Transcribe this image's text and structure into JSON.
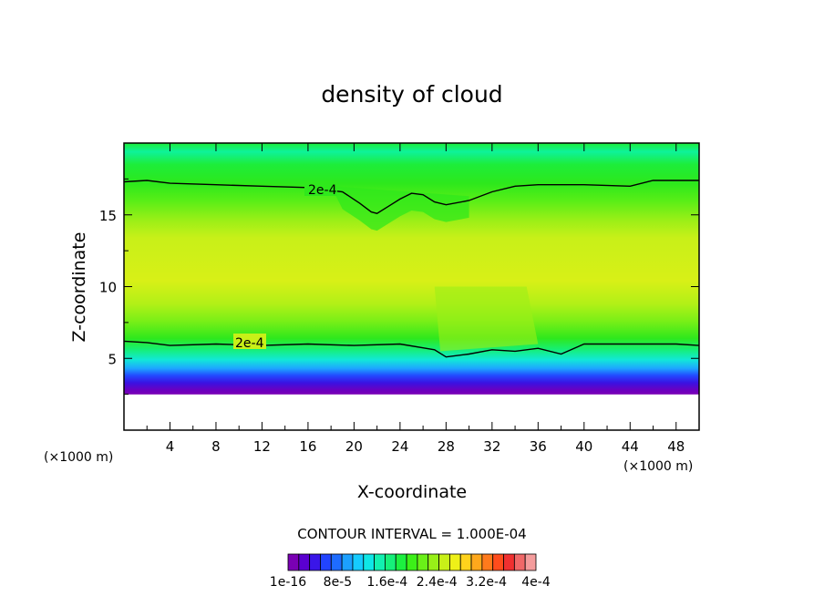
{
  "chart_data": {
    "type": "heatmap",
    "title": "density of cloud",
    "xlabel": "X-coordinate",
    "ylabel": "Z-coordinate",
    "x_unit": "(×1000 m)",
    "y_unit": "(×1000 m)",
    "xlim": [
      0,
      50
    ],
    "ylim": [
      0,
      20
    ],
    "x_ticks": [
      "4",
      "8",
      "12",
      "16",
      "20",
      "24",
      "28",
      "32",
      "36",
      "40",
      "44",
      "48"
    ],
    "y_ticks": [
      "5",
      "10",
      "15"
    ],
    "contour_interval_label": "CONTOUR INTERVAL = 1.000E-04",
    "contour_labels": [
      "2e-4",
      "2e-4"
    ],
    "upper_contour_2e4": {
      "x": [
        0,
        2,
        4,
        8,
        12,
        16,
        19,
        20.5,
        21.5,
        22,
        23,
        24,
        25,
        26,
        27,
        28,
        30,
        32,
        34,
        36,
        40,
        44,
        46,
        50
      ],
      "z": [
        17.3,
        17.4,
        17.2,
        17.1,
        17.0,
        16.9,
        16.6,
        15.8,
        15.2,
        15.1,
        15.6,
        16.1,
        16.5,
        16.4,
        15.9,
        15.7,
        16.0,
        16.6,
        17.0,
        17.1,
        17.1,
        17.0,
        17.4,
        17.4
      ]
    },
    "lower_contour_2e4": {
      "x": [
        0,
        2,
        4,
        8,
        12,
        16,
        20,
        24,
        27,
        28,
        30,
        32,
        34,
        36,
        38,
        40,
        44,
        48,
        50
      ],
      "z": [
        6.2,
        6.1,
        5.9,
        6.0,
        5.9,
        6.0,
        5.9,
        6.0,
        5.6,
        5.1,
        5.3,
        5.6,
        5.5,
        5.7,
        5.3,
        6.0,
        6.0,
        6.0,
        5.9
      ]
    },
    "cloud_base_z": 2.5,
    "colorbar": {
      "tick_labels": [
        "1e-16",
        "8e-5",
        "1.6e-4",
        "2.4e-4",
        "3.2e-4",
        "4e-4"
      ],
      "colors": [
        "#7a00b4",
        "#5a00d0",
        "#3a16e8",
        "#2244ff",
        "#1e6cff",
        "#1ca0ff",
        "#16cbff",
        "#0fe6e6",
        "#12f0b0",
        "#16f07a",
        "#1cf040",
        "#3cf018",
        "#6af018",
        "#98f018",
        "#c8f018",
        "#eef018",
        "#ffd21c",
        "#ffa81c",
        "#ff7a1c",
        "#ff4c1c",
        "#f03030",
        "#f06868",
        "#f49c9c"
      ]
    }
  }
}
